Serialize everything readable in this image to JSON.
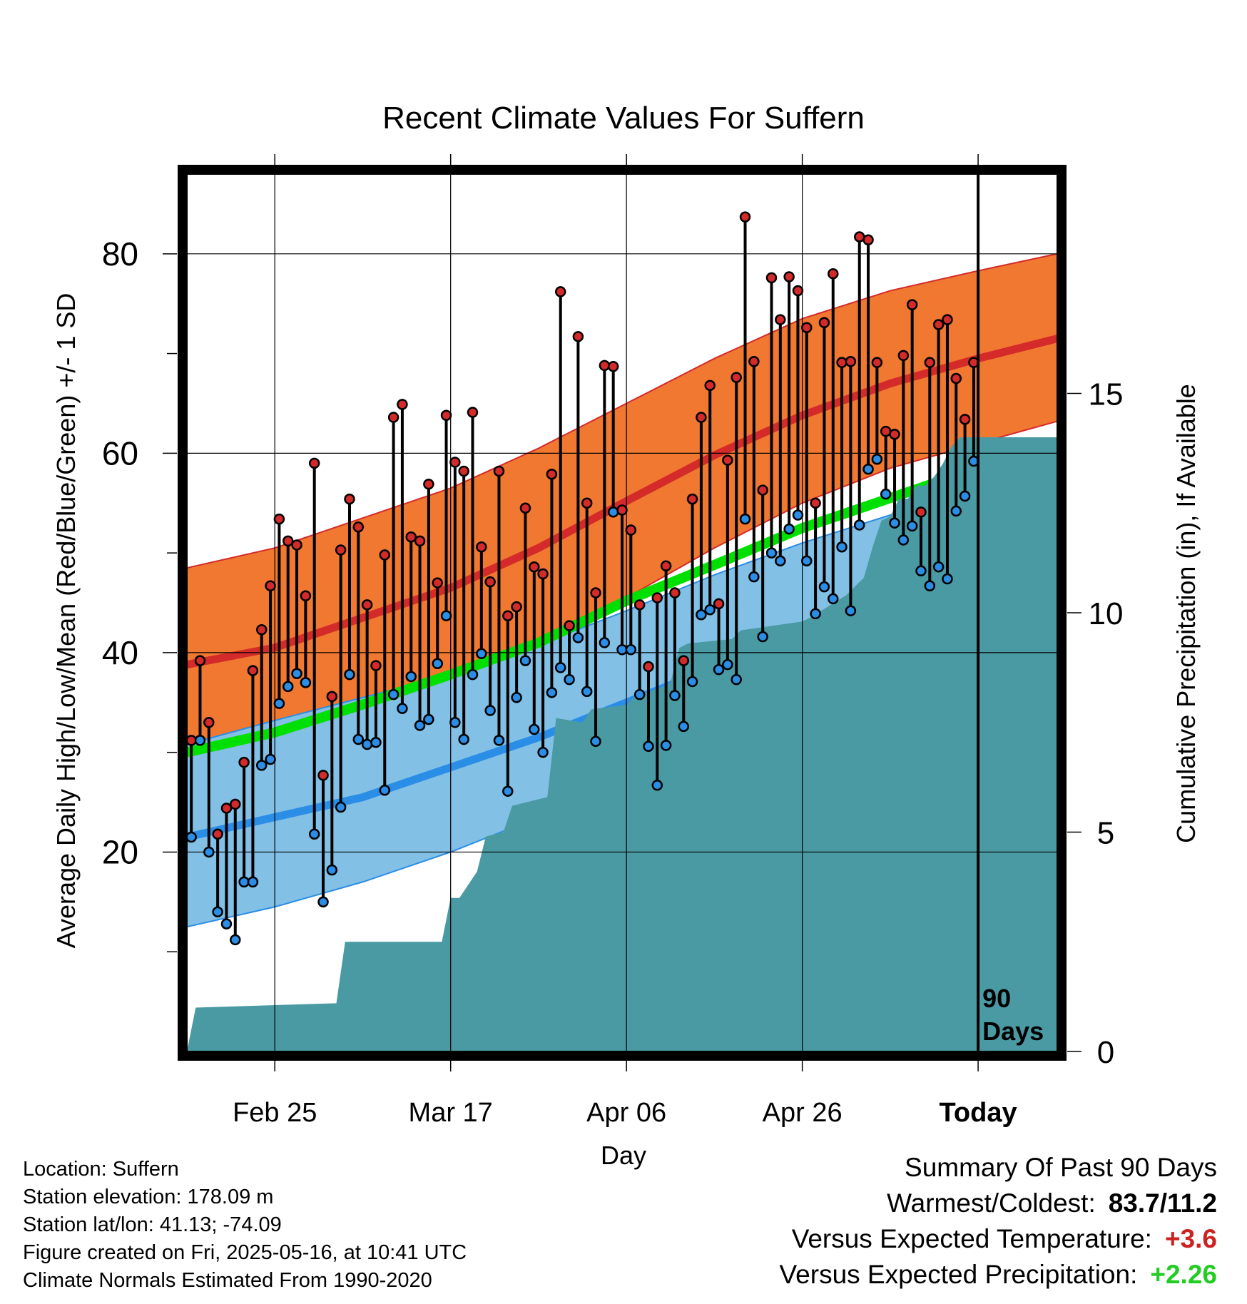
{
  "chart_data": {
    "type": "line",
    "title": "Recent Climate Values For Suffern",
    "xlabel": "Day",
    "ylabel": "Average Daily High/Low/Mean (Red/Blue/Green) +/- 1 SD",
    "y2label": "Cumulative Precipitation (in), If Available",
    "x_ticks": [
      "Feb 25",
      "Mar 17",
      "Apr 06",
      "Apr 26",
      "Today"
    ],
    "y_ticks": [
      "20",
      "40",
      "60",
      "80"
    ],
    "y2_ticks": [
      "0",
      "5",
      "10",
      "15"
    ],
    "today_marker_label": "90\nDays",
    "xlim": [
      "2025-02-15",
      "2025-05-25"
    ],
    "ylim": [
      0,
      88
    ],
    "y2lim": [
      0,
      20
    ],
    "colors": {
      "high_band": "#f07830",
      "high_line": "#d42a2a",
      "low_band": "#82c0e6",
      "low_line": "#2a8de6",
      "mean_line": "#00e000",
      "precip": "#4a9aa4",
      "high_point": "#d42a2a",
      "low_point": "#2a8de6"
    },
    "normals": {
      "dates": [
        "2025-02-15",
        "2025-02-25",
        "2025-03-07",
        "2025-03-17",
        "2025-03-27",
        "2025-04-06",
        "2025-04-16",
        "2025-04-26",
        "2025-05-06",
        "2025-05-16",
        "2025-05-25"
      ],
      "high_mean": [
        38.8,
        40.5,
        43.5,
        46.5,
        50.5,
        55.2,
        59.8,
        63.8,
        67.0,
        69.5,
        71.5
      ],
      "high_sd_upper": [
        48.5,
        50.5,
        53.5,
        56.5,
        60.5,
        65.0,
        69.5,
        73.5,
        76.3,
        78.3,
        80.0
      ],
      "high_sd_lower": [
        30.5,
        32.0,
        34.5,
        37.5,
        41.0,
        45.5,
        50.5,
        55.0,
        58.5,
        61.0,
        63.2
      ],
      "low_mean": [
        21.5,
        23.5,
        25.5,
        28.5,
        31.5,
        35.0,
        38.5,
        42.0,
        45.0,
        48.0,
        50.5
      ],
      "low_sd_upper": [
        30.8,
        33.2,
        35.5,
        37.8,
        40.8,
        44.2,
        47.8,
        51.0,
        53.8,
        56.0,
        57.8
      ],
      "low_sd_lower": [
        12.5,
        14.5,
        17.0,
        20.0,
        23.5,
        27.5,
        31.5,
        35.3,
        38.5,
        41.8,
        44.5
      ],
      "mean_line": [
        30.0,
        32.0,
        34.8,
        37.8,
        41.0,
        45.2,
        48.8,
        52.5,
        55.5,
        58.5,
        61.0
      ]
    },
    "daily": {
      "start_date": "2025-02-15",
      "highs": [
        31.2,
        39.2,
        33.0,
        21.8,
        24.4,
        24.8,
        29.0,
        38.2,
        42.3,
        46.7,
        53.4,
        51.2,
        50.8,
        45.7,
        59.0,
        27.7,
        35.6,
        50.3,
        55.4,
        52.6,
        44.8,
        38.7,
        49.8,
        63.6,
        64.9,
        51.6,
        51.2,
        56.9,
        47.0,
        63.8,
        59.1,
        58.2,
        64.1,
        50.6,
        47.1,
        58.2,
        43.7,
        44.6,
        54.5,
        48.6,
        47.9,
        57.9,
        76.2,
        42.7,
        71.7,
        55.0,
        46.0,
        68.8,
        68.7,
        54.3,
        52.3,
        44.8,
        38.6,
        45.5,
        48.7,
        46.0,
        39.2,
        55.4,
        63.6,
        66.8,
        44.9,
        59.3,
        67.6,
        83.7,
        69.2,
        56.3,
        77.6,
        73.4,
        77.7,
        76.3,
        72.6,
        55.0,
        73.1,
        78.0,
        69.1,
        69.2,
        81.7,
        81.4,
        69.1,
        62.2,
        61.9,
        69.8,
        74.9,
        54.1,
        69.1,
        72.9,
        73.4,
        67.5,
        63.4,
        69.1
      ],
      "lows": [
        21.5,
        31.2,
        20.0,
        14.0,
        12.8,
        11.2,
        17.0,
        17.0,
        28.7,
        29.3,
        34.9,
        36.6,
        37.9,
        37.0,
        21.8,
        15.0,
        18.2,
        24.5,
        37.8,
        31.3,
        30.8,
        31.0,
        26.2,
        35.8,
        34.4,
        37.6,
        32.7,
        33.3,
        38.9,
        43.7,
        33.0,
        31.3,
        37.8,
        39.9,
        34.2,
        31.2,
        26.1,
        35.5,
        39.2,
        32.3,
        30.0,
        36.0,
        38.5,
        37.3,
        41.5,
        36.1,
        31.1,
        41.0,
        54.1,
        40.3,
        40.3,
        35.8,
        30.6,
        26.7,
        30.7,
        35.7,
        32.6,
        37.1,
        43.8,
        44.3,
        38.3,
        38.8,
        37.3,
        53.4,
        47.6,
        41.6,
        50.0,
        49.2,
        52.4,
        53.8,
        49.2,
        43.9,
        46.6,
        45.4,
        50.6,
        44.2,
        52.8,
        58.4,
        59.4,
        55.9,
        53.0,
        51.3,
        52.7,
        48.2,
        46.7,
        48.6,
        47.4,
        54.2,
        55.7,
        59.2
      ]
    },
    "precipitation": {
      "dates": [
        "2025-02-15",
        "2025-02-16",
        "2025-03-04",
        "2025-03-05",
        "2025-03-16",
        "2025-03-17",
        "2025-03-18",
        "2025-03-20",
        "2025-03-21",
        "2025-03-23",
        "2025-03-24",
        "2025-03-28",
        "2025-03-29",
        "2025-04-01",
        "2025-04-02",
        "2025-04-06",
        "2025-04-07",
        "2025-04-10",
        "2025-04-11",
        "2025-04-12",
        "2025-04-13",
        "2025-04-18",
        "2025-04-19",
        "2025-04-26",
        "2025-04-27",
        "2025-05-01",
        "2025-05-03",
        "2025-05-04",
        "2025-05-05",
        "2025-05-06",
        "2025-05-07",
        "2025-05-08",
        "2025-05-09",
        "2025-05-10",
        "2025-05-11",
        "2025-05-12",
        "2025-05-13",
        "2025-05-14",
        "2025-05-16",
        "2025-05-25"
      ],
      "cumulative_in": [
        0.0,
        1.0,
        1.1,
        2.5,
        2.5,
        3.5,
        3.5,
        4.1,
        4.9,
        5.0,
        5.6,
        5.8,
        7.6,
        7.5,
        7.8,
        7.9,
        8.1,
        8.3,
        8.4,
        9.2,
        9.3,
        9.4,
        9.6,
        9.8,
        9.9,
        10.4,
        10.8,
        11.5,
        12.1,
        12.2,
        12.6,
        12.6,
        12.9,
        12.9,
        13.1,
        13.4,
        13.8,
        14.0,
        14.0,
        14.0
      ]
    }
  },
  "footer": {
    "location": "Location: Suffern",
    "elevation": "Station elevation: 178.09 m",
    "latlon": "Station lat/lon: 41.13; -74.09",
    "created": "Figure created on Fri, 2025-05-16, at 10:41 UTC",
    "normals": "Climate Normals Estimated From 1990-2020"
  },
  "summary": {
    "heading": "Summary Of Past 90 Days",
    "warmest_label": "Warmest/Coldest:",
    "warmest_value": "83.7/11.2",
    "temp_label": "Versus Expected Temperature:",
    "temp_value": "+3.6",
    "precip_label": "Versus Expected Precipitation:",
    "precip_value": "+2.26"
  }
}
